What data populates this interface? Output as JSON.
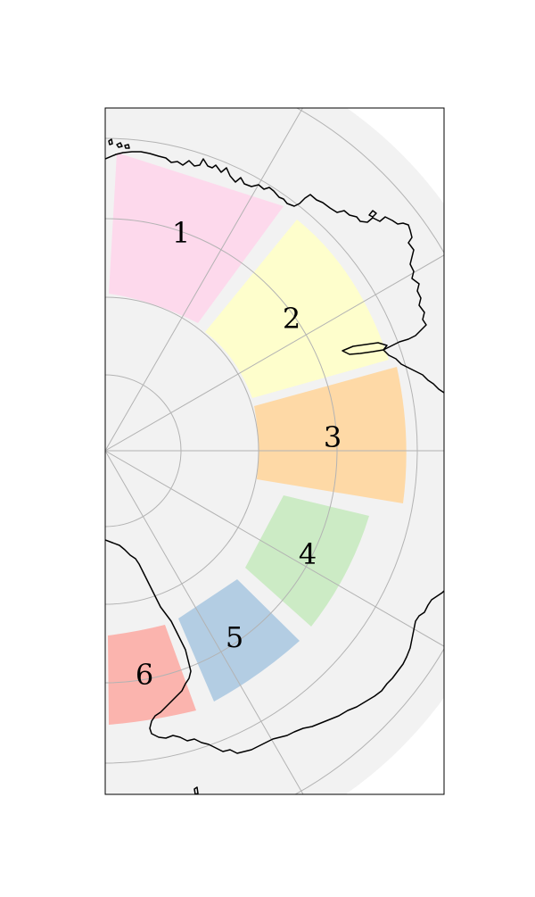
{
  "map": {
    "projection": "south-polar-stereographic",
    "colors": {
      "ocean_background": "#f2f2f2",
      "frame": "#000000",
      "graticule": "#b3b3b3",
      "coastline": "#000000"
    },
    "sectors": [
      {
        "label": "1",
        "color": "#fdd9ec"
      },
      {
        "label": "2",
        "color": "#fefecc"
      },
      {
        "label": "3",
        "color": "#fed9a6"
      },
      {
        "label": "4",
        "color": "#ccebc5"
      },
      {
        "label": "5",
        "color": "#b3cde3"
      },
      {
        "label": "6",
        "color": "#fbb4ae"
      }
    ]
  }
}
